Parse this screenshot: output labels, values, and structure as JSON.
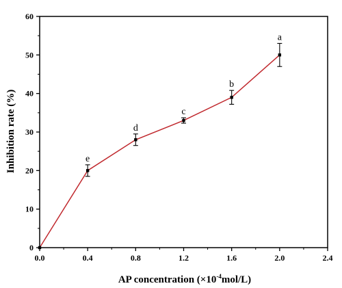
{
  "chart_data": {
    "type": "line",
    "title": "",
    "xlabel": "AP  concentration (×10",
    "xlabel_sup": "-4",
    "xlabel_suffix": "mol/L)",
    "ylabel": "Inhibition  rate (%)",
    "xlim": [
      0.0,
      2.4
    ],
    "ylim": [
      0,
      60
    ],
    "x_ticks": [
      "0.0",
      "0.4",
      "0.8",
      "1.2",
      "1.6",
      "2.0",
      "2.4"
    ],
    "y_ticks": [
      "0",
      "10",
      "20",
      "30",
      "40",
      "50",
      "60"
    ],
    "grid": false,
    "legend": "none",
    "line_color": "#c0282d",
    "marker_color": "#000000",
    "series": [
      {
        "x": [
          0.0,
          0.4,
          0.8,
          1.2,
          1.6,
          2.0
        ],
        "y": [
          0,
          20,
          28,
          33,
          39,
          50
        ],
        "error": [
          0,
          1.5,
          1.5,
          0.7,
          1.8,
          3.0
        ],
        "annotations": [
          "",
          "e",
          "d",
          "c",
          "b",
          "a"
        ]
      }
    ]
  }
}
